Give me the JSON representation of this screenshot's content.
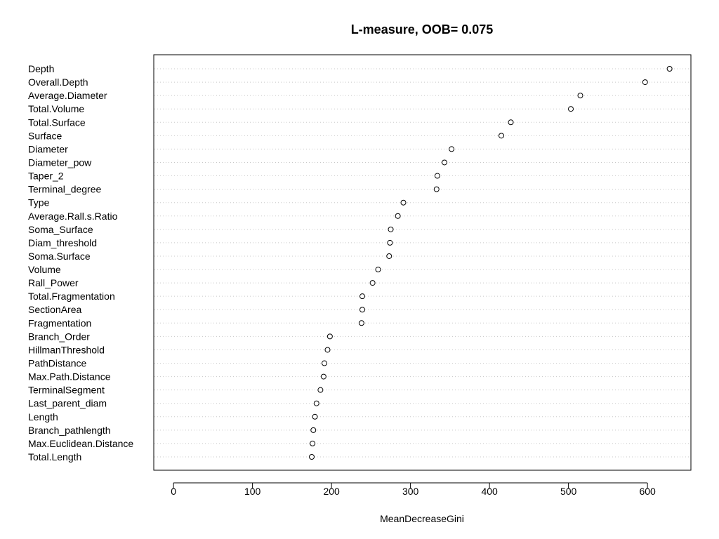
{
  "chart_data": {
    "type": "scatter",
    "title": "L-measure, OOB= 0.075",
    "xlabel": "MeanDecreaseGini",
    "ylabel": "",
    "xlim": [
      -25,
      655
    ],
    "xticks": [
      0,
      100,
      200,
      300,
      400,
      500,
      600
    ],
    "grid": "dotted horizontal guide lines",
    "legend": "none",
    "categories": [
      "Depth",
      "Overall.Depth",
      "Average.Diameter",
      "Total.Volume",
      "Total.Surface",
      "Surface",
      "Diameter",
      "Diameter_pow",
      "Taper_2",
      "Terminal_degree",
      "Type",
      "Average.Rall.s.Ratio",
      "Soma_Surface",
      "Diam_threshold",
      "Soma.Surface",
      "Volume",
      "Rall_Power",
      "Total.Fragmentation",
      "SectionArea",
      "Fragmentation",
      "Branch_Order",
      "HillmanThreshold",
      "PathDistance",
      "Max.Path.Distance",
      "TerminalSegment",
      "Last_parent_diam",
      "Length",
      "Branch_pathlength",
      "Max.Euclidean.Distance",
      "Total.Length"
    ],
    "values": [
      628,
      597,
      515,
      503,
      427,
      415,
      352,
      343,
      334,
      333,
      291,
      284,
      275,
      274,
      273,
      259,
      252,
      239,
      239,
      238,
      198,
      195,
      191,
      190,
      186,
      181,
      179,
      177,
      176,
      175
    ]
  }
}
